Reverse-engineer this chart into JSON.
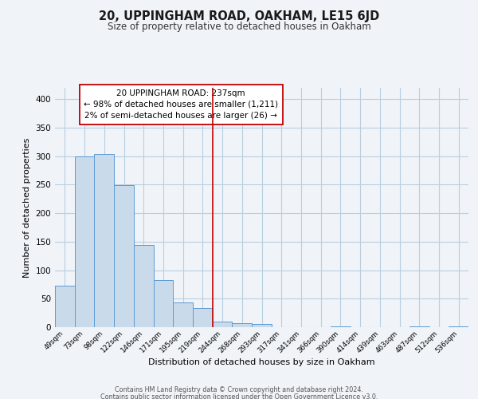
{
  "title": "20, UPPINGHAM ROAD, OAKHAM, LE15 6JD",
  "subtitle": "Size of property relative to detached houses in Oakham",
  "xlabel": "Distribution of detached houses by size in Oakham",
  "ylabel": "Number of detached properties",
  "footer_line1": "Contains HM Land Registry data © Crown copyright and database right 2024.",
  "footer_line2": "Contains public sector information licensed under the Open Government Licence v3.0.",
  "bin_labels": [
    "49sqm",
    "73sqm",
    "98sqm",
    "122sqm",
    "146sqm",
    "171sqm",
    "195sqm",
    "219sqm",
    "244sqm",
    "268sqm",
    "293sqm",
    "317sqm",
    "341sqm",
    "366sqm",
    "390sqm",
    "414sqm",
    "439sqm",
    "463sqm",
    "487sqm",
    "512sqm",
    "536sqm"
  ],
  "bar_values": [
    73,
    299,
    304,
    249,
    144,
    83,
    44,
    33,
    10,
    7,
    6,
    0,
    0,
    0,
    2,
    0,
    0,
    0,
    2,
    0,
    2
  ],
  "bar_color": "#c9daea",
  "bar_edge_color": "#5b9bd5",
  "vline_x_index": 8,
  "vline_color": "#c00000",
  "annotation_box_text_line1": "20 UPPINGHAM ROAD: 237sqm",
  "annotation_box_text_line2": "← 98% of detached houses are smaller (1,211)",
  "annotation_box_text_line3": "2% of semi-detached houses are larger (26) →",
  "annotation_box_edge_color": "#c00000",
  "annotation_box_face_color": "#ffffff",
  "ylim": [
    0,
    420
  ],
  "yticks": [
    0,
    50,
    100,
    150,
    200,
    250,
    300,
    350,
    400
  ],
  "bg_color": "#f0f4f8",
  "grid_color": "#b8cfe0",
  "title_fontsize": 10.5,
  "subtitle_fontsize": 8.5
}
